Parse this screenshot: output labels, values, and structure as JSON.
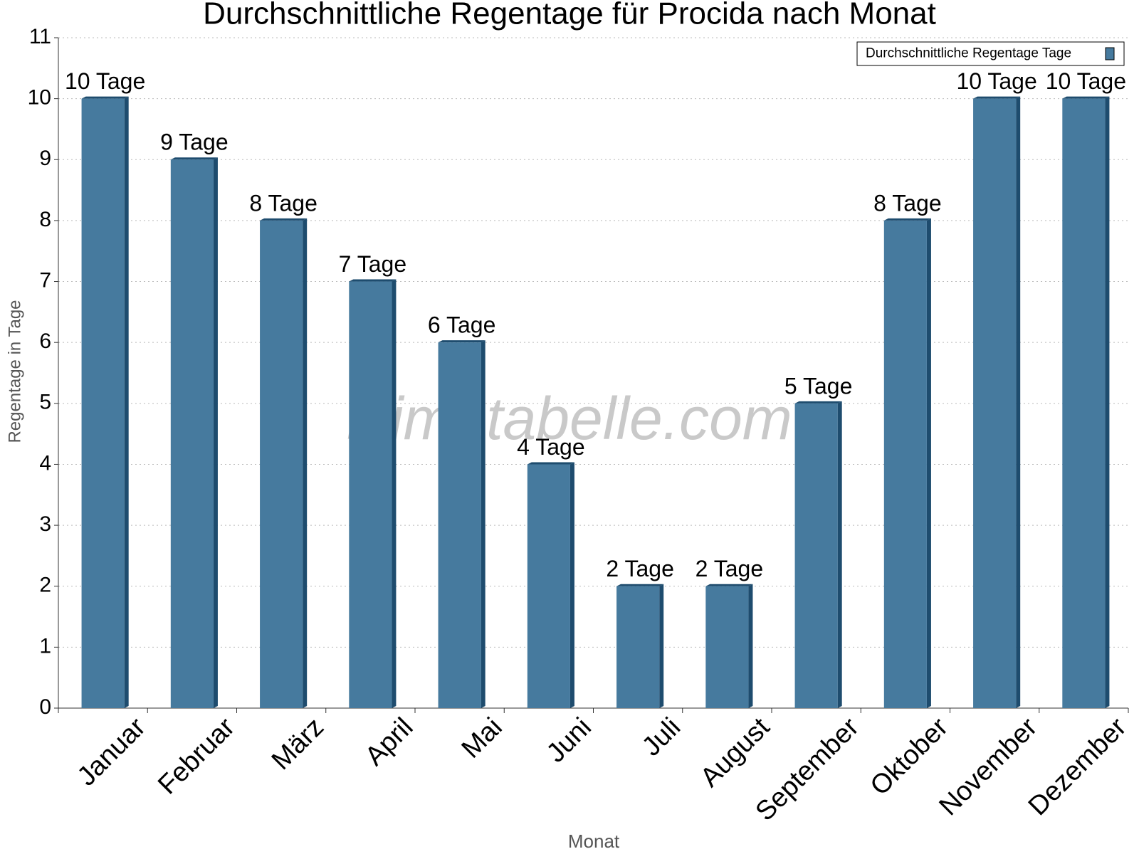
{
  "chart_data": {
    "type": "bar",
    "title": "Durchschnittliche Regentage für Procida nach Monat",
    "x_label": "Monat",
    "y_label": "Regentage in Tage",
    "watermark": "klimatabelle.com",
    "categories": [
      "Januar",
      "Februar",
      "März",
      "April",
      "Mai",
      "Juni",
      "Juli",
      "August",
      "September",
      "Oktober",
      "November",
      "Dezember"
    ],
    "series": [
      {
        "name": "Durchschnittliche Regentage Tage",
        "color": "#467a9e",
        "values": [
          10,
          9,
          8,
          7,
          6,
          4,
          2,
          2,
          5,
          8,
          10,
          10
        ],
        "value_labels": [
          "10 Tage",
          "9 Tage",
          "8 Tage",
          "7 Tage",
          "6 Tage",
          "4 Tage",
          "2 Tage",
          "2 Tage",
          "5 Tage",
          "8 Tage",
          "10 Tage",
          "10 Tage"
        ]
      }
    ],
    "ylim": [
      0,
      11
    ],
    "yticks": [
      0,
      1,
      2,
      3,
      4,
      5,
      6,
      7,
      8,
      9,
      10,
      11
    ],
    "grid": true,
    "legend": "top-right"
  }
}
